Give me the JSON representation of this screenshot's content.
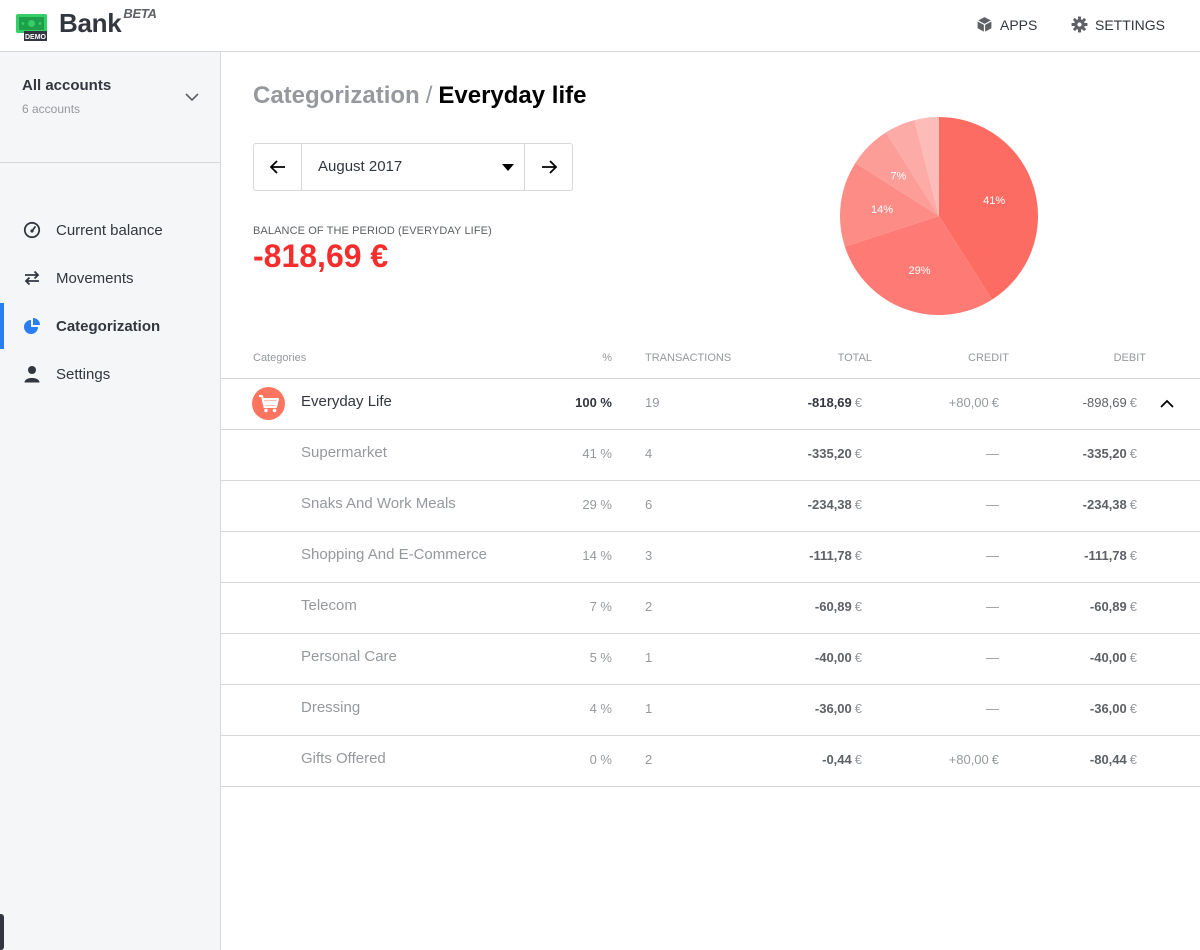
{
  "app": {
    "name": "Bank",
    "badge": "BETA",
    "logo_icon": "bank-note-demo-icon",
    "logo_badge": "DEMO",
    "accent_color": "#297ef2",
    "negative_color": "#f52d2d"
  },
  "topbar": {
    "apps_label": "APPS",
    "settings_label": "SETTINGS"
  },
  "sidebar": {
    "account_switcher": {
      "title": "All accounts",
      "subtitle": "6 accounts"
    },
    "items": [
      {
        "label": "Current balance",
        "icon": "gauge-icon",
        "active": false
      },
      {
        "label": "Movements",
        "icon": "transfer-arrows-icon",
        "active": false
      },
      {
        "label": "Categorization",
        "icon": "pie-chart-icon",
        "active": true
      },
      {
        "label": "Settings",
        "icon": "user-icon",
        "active": false
      }
    ]
  },
  "breadcrumb": {
    "parent": "Categorization",
    "separator": "/",
    "current": "Everyday life"
  },
  "period": {
    "value": "August 2017"
  },
  "balance": {
    "label": "Balance of the period (Everyday life)",
    "value": "-818,69 €"
  },
  "chart_data": {
    "type": "pie",
    "slices": [
      {
        "label": "41%",
        "value": 41,
        "color": "#fd6c63"
      },
      {
        "label": "29%",
        "value": 29,
        "color": "#fd7b74"
      },
      {
        "label": "14%",
        "value": 14,
        "color": "#fd8c86"
      },
      {
        "label": "7%",
        "value": 7,
        "color": "#fd9d98"
      },
      {
        "label": "",
        "value": 5,
        "color": "#fdaba7"
      },
      {
        "label": "",
        "value": 4,
        "color": "#fdbcb8"
      }
    ]
  },
  "table": {
    "headers": {
      "category": "Categories",
      "percent": "%",
      "transactions": "Transactions",
      "total": "Total",
      "credit": "Credit",
      "debit": "Debit"
    },
    "main_row": {
      "name": "Everyday Life",
      "icon": "shopping-cart-icon",
      "percent": "100 %",
      "transactions": "19",
      "total": "-818,69",
      "credit": "+80,00",
      "debit": "-898,69",
      "currency": "€"
    },
    "rows": [
      {
        "name": "Supermarket",
        "percent": "41 %",
        "transactions": "4",
        "total": "-335,20",
        "credit": "—",
        "debit": "-335,20",
        "currency": "€"
      },
      {
        "name": "Snaks And Work Meals",
        "percent": "29 %",
        "transactions": "6",
        "total": "-234,38",
        "credit": "—",
        "debit": "-234,38",
        "currency": "€"
      },
      {
        "name": "Shopping And E-Commerce",
        "percent": "14 %",
        "transactions": "3",
        "total": "-111,78",
        "credit": "—",
        "debit": "-111,78",
        "currency": "€"
      },
      {
        "name": "Telecom",
        "percent": "7 %",
        "transactions": "2",
        "total": "-60,89",
        "credit": "—",
        "debit": "-60,89",
        "currency": "€"
      },
      {
        "name": "Personal Care",
        "percent": "5 %",
        "transactions": "1",
        "total": "-40,00",
        "credit": "—",
        "debit": "-40,00",
        "currency": "€"
      },
      {
        "name": "Dressing",
        "percent": "4 %",
        "transactions": "1",
        "total": "-36,00",
        "credit": "—",
        "debit": "-36,00",
        "currency": "€"
      },
      {
        "name": "Gifts Offered",
        "percent": "0 %",
        "transactions": "2",
        "total": "-0,44",
        "credit": "+80,00",
        "debit": "-80,44",
        "currency": "€"
      }
    ]
  }
}
